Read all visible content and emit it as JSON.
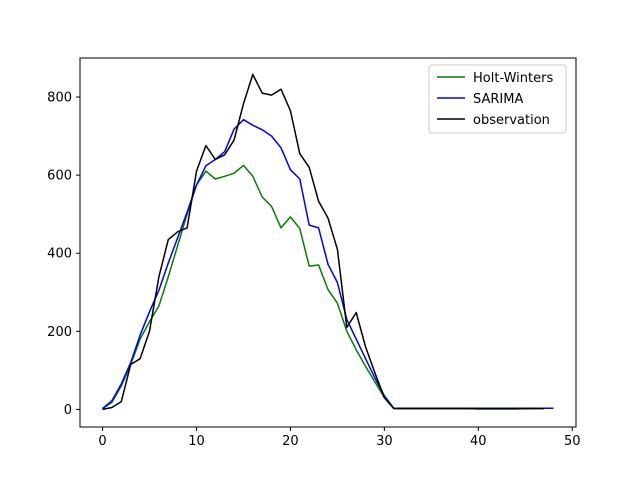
{
  "chart_data": {
    "type": "line",
    "title": "",
    "xlabel": "",
    "ylabel": "",
    "xlim": [
      -2.4,
      50.4
    ],
    "ylim": [
      -45,
      900
    ],
    "x_ticks": [
      0,
      10,
      20,
      30,
      40,
      50
    ],
    "y_ticks": [
      0,
      200,
      400,
      600,
      800
    ],
    "grid": false,
    "legend_position": "top-right",
    "series": [
      {
        "name": "Holt-Winters",
        "color": "#008000",
        "x": [
          0,
          1,
          2,
          3,
          4,
          5,
          6,
          7,
          8,
          9,
          10,
          11,
          12,
          13,
          14,
          15,
          16,
          17,
          18,
          19,
          20,
          21,
          22,
          23,
          24,
          25,
          26,
          27,
          28,
          29,
          30,
          31,
          32,
          33,
          34,
          35,
          36,
          37,
          38,
          39,
          40,
          41,
          42,
          43,
          44,
          45,
          46,
          47
        ],
        "y": [
          2,
          18,
          60,
          115,
          180,
          225,
          265,
          340,
          420,
          500,
          575,
          610,
          590,
          597,
          605,
          625,
          597,
          544,
          520,
          465,
          493,
          463,
          367,
          370,
          307,
          272,
          200,
          153,
          110,
          70,
          30,
          3,
          2,
          2,
          2,
          2,
          2,
          2,
          2,
          2,
          1,
          1,
          1,
          1,
          1,
          2,
          2,
          3
        ]
      },
      {
        "name": "SARIMA",
        "color": "#0000ff",
        "x": [
          0,
          1,
          2,
          3,
          4,
          5,
          6,
          7,
          8,
          9,
          10,
          11,
          12,
          13,
          14,
          15,
          16,
          17,
          18,
          19,
          20,
          21,
          22,
          23,
          24,
          25,
          26,
          27,
          28,
          29,
          30,
          31,
          32,
          33,
          34,
          35,
          36,
          37,
          38,
          39,
          40,
          41,
          42,
          43,
          44,
          45,
          46,
          47,
          48
        ],
        "y": [
          2,
          22,
          65,
          120,
          190,
          250,
          305,
          375,
          440,
          505,
          575,
          624,
          640,
          660,
          718,
          742,
          728,
          716,
          700,
          670,
          614,
          590,
          472,
          465,
          372,
          325,
          230,
          180,
          130,
          80,
          35,
          3,
          3,
          3,
          3,
          3,
          3,
          3,
          3,
          3,
          3,
          3,
          3,
          3,
          3,
          3,
          3,
          3,
          3
        ]
      },
      {
        "name": "observation",
        "color": "#000000",
        "x": [
          0,
          1,
          2,
          3,
          4,
          5,
          6,
          7,
          8,
          9,
          10,
          11,
          12,
          13,
          14,
          15,
          16,
          17,
          18,
          19,
          20,
          21,
          22,
          23,
          24,
          25,
          26,
          27,
          28,
          29,
          30,
          31,
          32,
          33,
          34,
          35,
          36,
          37,
          38,
          39,
          40,
          41,
          42,
          43,
          44,
          45,
          46,
          47
        ],
        "y": [
          0,
          5,
          20,
          115,
          130,
          200,
          340,
          435,
          455,
          465,
          610,
          676,
          640,
          652,
          690,
          783,
          858,
          810,
          805,
          820,
          765,
          655,
          620,
          533,
          490,
          410,
          210,
          248,
          160,
          93,
          30,
          2,
          2,
          2,
          2,
          2,
          2,
          2,
          2,
          2,
          2,
          2,
          2,
          2,
          2,
          2,
          2,
          2
        ]
      }
    ]
  }
}
